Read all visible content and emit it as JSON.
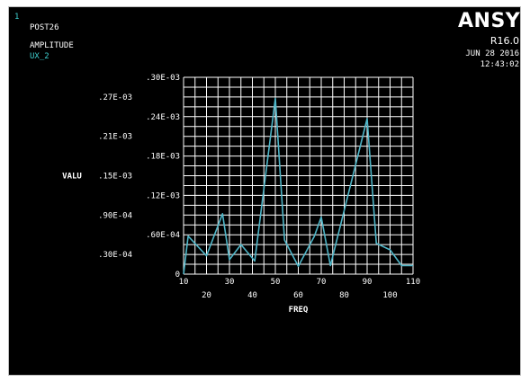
{
  "header": {
    "window_number": "1",
    "module": "POST26",
    "plot_label": "AMPLITUDE",
    "variable": "UX_2",
    "brand": "ANSYS",
    "release": "R16.0",
    "date": "JUN 28 2016",
    "time": "12:43:02"
  },
  "colors": {
    "background": "#000000",
    "grid": "#ffffff",
    "series": "#4fb6c8",
    "accent_text": "#3fd0d0"
  },
  "chart_data": {
    "type": "line",
    "title": "",
    "xlabel": "FREQ",
    "ylabel": "VALU",
    "xlim": [
      10,
      110
    ],
    "ylim": [
      0,
      0.0003
    ],
    "grid": true,
    "x_ticks_lower": [
      "10",
      "30",
      "50",
      "70",
      "90",
      "110"
    ],
    "x_ticks_upper": [
      "20",
      "40",
      "60",
      "80",
      "100"
    ],
    "y_ticks_right": [
      "0",
      ".60E-04",
      ".12E-03",
      ".18E-03",
      ".24E-03",
      ".30E-03"
    ],
    "y_ticks_left": [
      ".30E-04",
      ".90E-04",
      ".15E-03",
      ".21E-03",
      ".27E-03"
    ],
    "series": [
      {
        "x": [
          10,
          12,
          20,
          27,
          30,
          35,
          41,
          50,
          54,
          60,
          67,
          70,
          74,
          90,
          94,
          100,
          105,
          110
        ],
        "y": [
          0,
          5.8e-05,
          2.8e-05,
          9.2e-05,
          2.2e-05,
          4.5e-05,
          2e-05,
          0.000268,
          5.2e-05,
          1.2e-05,
          5.8e-05,
          8.7e-05,
          1.3e-05,
          0.000237,
          4.7e-05,
          3.7e-05,
          1.3e-05,
          1.3e-05
        ]
      }
    ]
  }
}
